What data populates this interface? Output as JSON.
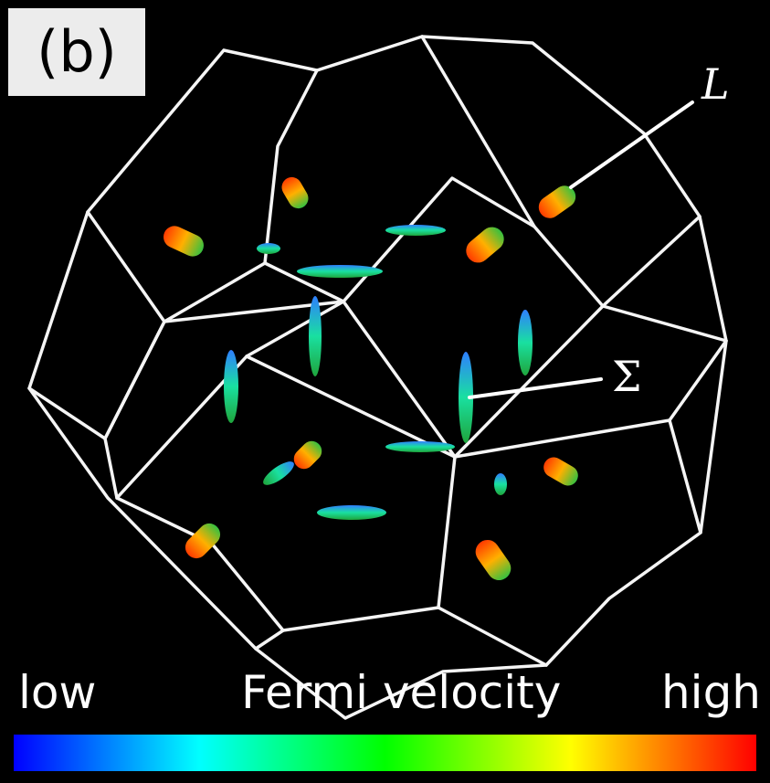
{
  "panel_label": "(b)",
  "points": {
    "L": "L",
    "Sigma": "Σ"
  },
  "colorbar": {
    "low_label": "low",
    "title": "Fermi velocity",
    "high_label": "high",
    "stops": [
      "#0000ff",
      "#00ffff",
      "#00ff00",
      "#ffff00",
      "#ff0000"
    ]
  }
}
